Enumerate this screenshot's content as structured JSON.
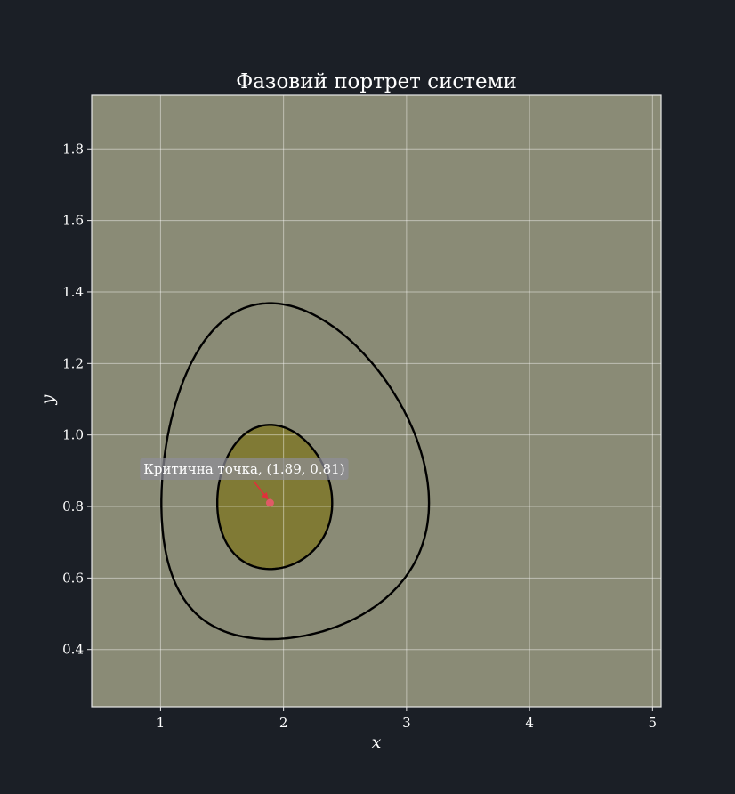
{
  "chart_data": {
    "type": "contour",
    "title": "Фазовий портрет системи",
    "xlabel": "x",
    "ylabel": "y",
    "xlim": [
      0.44,
      5.07
    ],
    "ylim": [
      0.24,
      1.95
    ],
    "xticks": [
      1,
      2,
      3,
      4,
      5
    ],
    "yticks": [
      0.4,
      0.6,
      0.8,
      1.0,
      1.2,
      1.4,
      1.6,
      1.8
    ],
    "grid": true,
    "levels": [
      0.5,
      0.75,
      1.0,
      1.25,
      1.5,
      1.75,
      2.0
    ],
    "band_colors": [
      "#181a3a",
      "#2c2570",
      "#53295c",
      "#8b2f2b",
      "#7e5418",
      "#807a35",
      "#8a8b76"
    ],
    "critical_point": {
      "x": 1.89,
      "y": 0.81,
      "label": "Критична точка, (1.89, 0.81)",
      "color": "#e05a66"
    }
  }
}
